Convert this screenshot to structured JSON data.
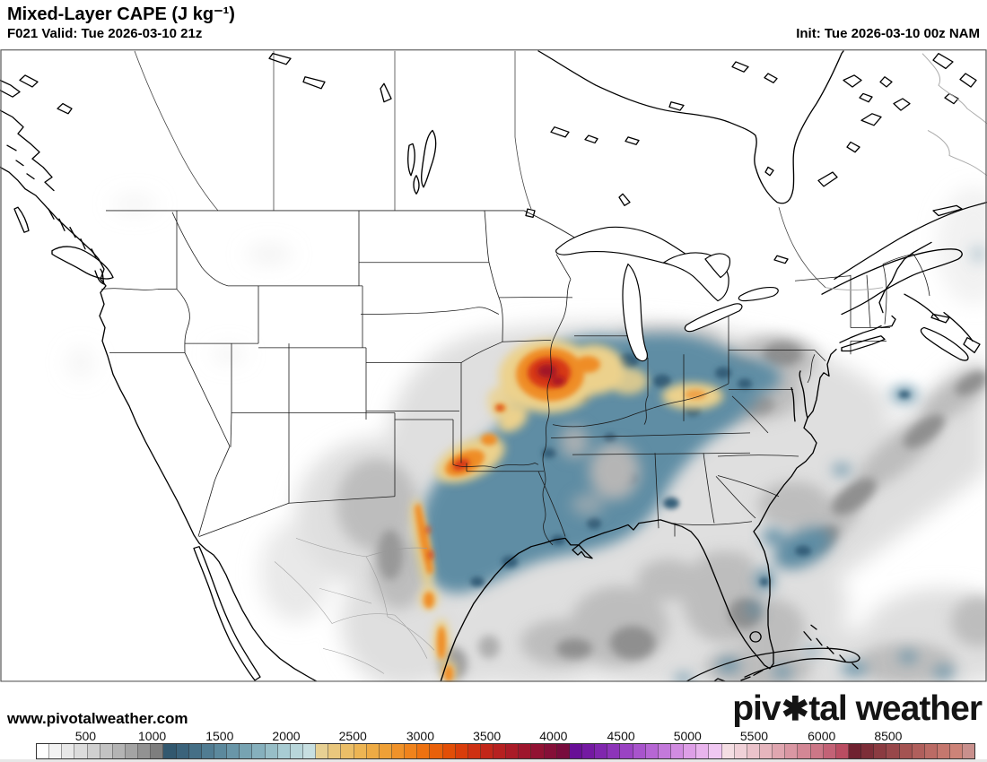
{
  "header": {
    "title": "Mixed-Layer CAPE (J kg⁻¹)",
    "forecast_line": "F021 Valid: Tue 2026-03-10 21z",
    "init_line": "Init: Tue 2026-03-10 00z NAM"
  },
  "map": {
    "site_url": "www.pivotalweather.com",
    "watermark": {
      "part1": "piv",
      "logo_o": "✱",
      "part2": "tal weather"
    }
  },
  "colorbar": {
    "tick_labels": [
      "500",
      "1000",
      "1500",
      "2000",
      "2500",
      "3000",
      "3500",
      "4000",
      "4500",
      "5000",
      "5500",
      "6000",
      "8500"
    ],
    "tick_positions_pct": [
      5.3,
      12.4,
      19.6,
      26.7,
      33.8,
      41.0,
      48.1,
      55.2,
      62.4,
      69.5,
      76.6,
      83.8,
      90.9
    ],
    "segment_colors": [
      "#ffffff",
      "#f3f3f3",
      "#e8e8e8",
      "#dcdcdc",
      "#d0d0d0",
      "#c3c3c3",
      "#b4b4b4",
      "#a4a4a4",
      "#929292",
      "#7e7e7e",
      "#32586f",
      "#3b637b",
      "#456f86",
      "#507c92",
      "#5c899d",
      "#6996a8",
      "#77a3b2",
      "#86b0bd",
      "#97bec7",
      "#a8ccd3",
      "#b8d6da",
      "#c7dfe1",
      "#e7d093",
      "#e9c77d",
      "#ebbe67",
      "#edb553",
      "#eeab44",
      "#efa036",
      "#f09229",
      "#f0831c",
      "#ee7211",
      "#e9600a",
      "#e24e07",
      "#d93d0b",
      "#ce3012",
      "#c22619",
      "#b62020",
      "#aa1b27",
      "#9e162d",
      "#921233",
      "#850f38",
      "#780c3d",
      "#680e96",
      "#7419a2",
      "#8026ae",
      "#8d34b9",
      "#9a43c3",
      "#a854cc",
      "#b666d4",
      "#c379db",
      "#d18ce1",
      "#de9fe7",
      "#e9b4ed",
      "#f0c8f2",
      "#f4dee3",
      "#f0d1d8",
      "#ebc3cb",
      "#e6b5bd",
      "#e0a6b0",
      "#da97a3",
      "#d38795",
      "#cc7787",
      "#c36276",
      "#ba4d62",
      "#702230",
      "#7d2e38",
      "#8b3b41",
      "#98474a",
      "#a45352",
      "#b05f5c",
      "#bb6b65",
      "#c5776e",
      "#cd8378",
      "#c9908d"
    ]
  }
}
